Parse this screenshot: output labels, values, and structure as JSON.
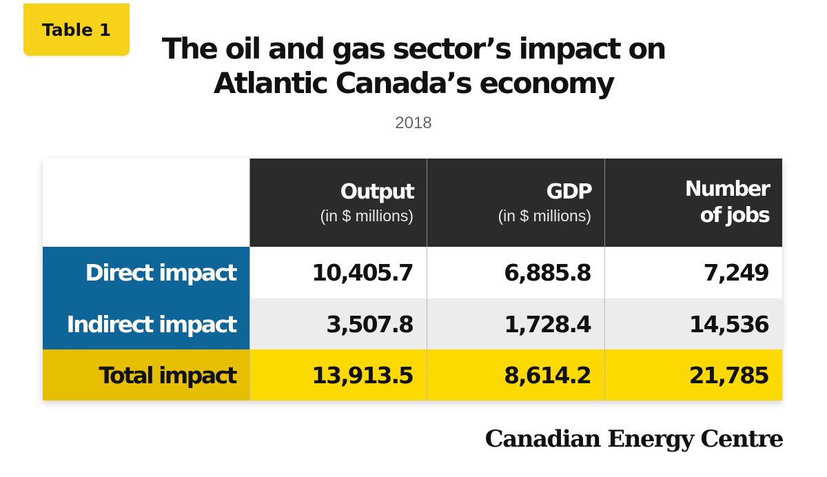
{
  "tag_label": "Table 1",
  "title": {
    "line1": "The oil and gas sector’s impact on",
    "line2": "Atlantic Canada’s economy"
  },
  "subtitle": "2018",
  "logo_text": "Canadian Energy Centre",
  "colors": {
    "tag": "#f6d21a",
    "header_bg": "#2b2b2b",
    "row_label_blue": "#0e6597",
    "row_label_gold": "#e6c000",
    "total_row": "#fcd900",
    "alt_row": "#ececec"
  },
  "chart_data": {
    "type": "table",
    "columns": [
      {
        "name": "Output",
        "unit": "(in $ millions)"
      },
      {
        "name": "GDP",
        "unit": "(in $ millions)"
      },
      {
        "name": "Number of jobs",
        "name_line1": "Number",
        "name_line2": "of jobs",
        "unit": ""
      }
    ],
    "rows": [
      {
        "label": "Direct impact",
        "values": [
          "10,405.7",
          "6,885.8",
          "7,249"
        ]
      },
      {
        "label": "Indirect impact",
        "values": [
          "3,507.8",
          "1,728.4",
          "14,536"
        ]
      },
      {
        "label": "Total impact",
        "values": [
          "13,913.5",
          "8,614.2",
          "21,785"
        ]
      }
    ]
  }
}
